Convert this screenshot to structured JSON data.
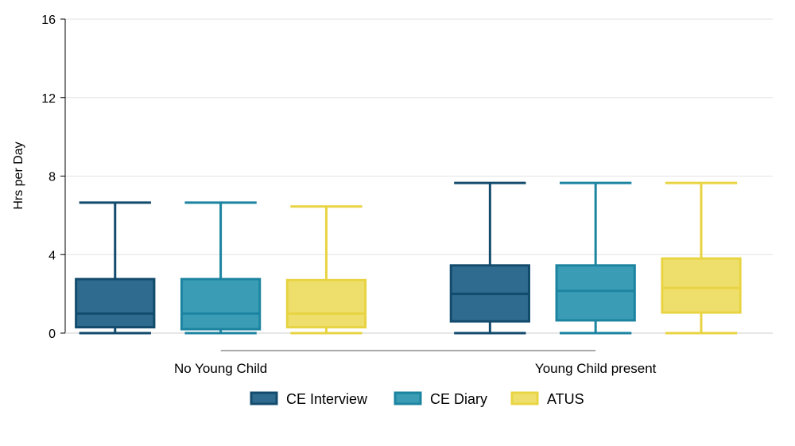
{
  "chart_data": {
    "type": "box",
    "title": "",
    "xlabel": "",
    "ylabel": "Hrs per Day",
    "ylim": [
      0,
      16
    ],
    "yticks": [
      0,
      4,
      8,
      12,
      16
    ],
    "grid": true,
    "legend_position": "bottom",
    "categories": [
      "No Young Child",
      "Young Child present"
    ],
    "series": [
      {
        "name": "CE Interview",
        "fill": "#2f6b8e",
        "stroke": "#134b6d",
        "boxes": [
          {
            "min": 0,
            "q1": 0.3,
            "median": 1.0,
            "q3": 2.75,
            "max": 6.65
          },
          {
            "min": 0,
            "q1": 0.6,
            "median": 2.0,
            "q3": 3.45,
            "max": 7.65
          }
        ]
      },
      {
        "name": "CE Diary",
        "fill": "#3a9db5",
        "stroke": "#1c84a0",
        "boxes": [
          {
            "min": 0,
            "q1": 0.2,
            "median": 1.0,
            "q3": 2.75,
            "max": 6.65
          },
          {
            "min": 0,
            "q1": 0.65,
            "median": 2.15,
            "q3": 3.45,
            "max": 7.65
          }
        ]
      },
      {
        "name": "ATUS",
        "fill": "#eedf6c",
        "stroke": "#e8d443",
        "boxes": [
          {
            "min": 0,
            "q1": 0.3,
            "median": 1.0,
            "q3": 2.7,
            "max": 6.45
          },
          {
            "min": 0,
            "q1": 1.05,
            "median": 2.3,
            "q3": 3.8,
            "max": 7.65
          }
        ]
      }
    ]
  }
}
